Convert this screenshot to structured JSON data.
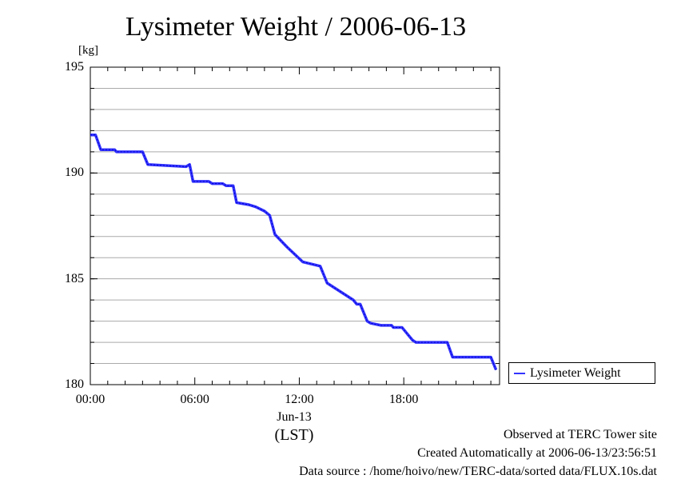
{
  "chart_data": {
    "type": "line",
    "title": "Lysimeter Weight / 2006-06-13",
    "ylabel": "[kg]",
    "ylim": [
      180,
      195
    ],
    "yticks": [
      "180",
      "185",
      "190",
      "195"
    ],
    "xlim": [
      0,
      23.5
    ],
    "xticks": [
      {
        "value": 0,
        "label": "00:00"
      },
      {
        "value": 6,
        "label": "06:00"
      },
      {
        "value": 12,
        "label": "12:00"
      },
      {
        "value": 18,
        "label": "18:00"
      }
    ],
    "xdate": "Jun-13",
    "xunit": "(LST)",
    "grid": true,
    "legend_position": "right-bottom",
    "series": [
      {
        "name": "Lysimeter Weight",
        "color": "#3333ff",
        "x": [
          0.0,
          0.3,
          0.6,
          1.4,
          1.5,
          3.0,
          3.3,
          5.5,
          5.7,
          5.9,
          6.8,
          7.0,
          7.6,
          7.8,
          8.2,
          8.4,
          9.1,
          9.5,
          10.0,
          10.3,
          10.6,
          11.3,
          12.2,
          13.2,
          13.6,
          15.1,
          15.3,
          15.5,
          15.9,
          16.1,
          16.7,
          17.3,
          17.4,
          17.9,
          18.0,
          18.5,
          18.7,
          20.5,
          20.8,
          23.0,
          23.3
        ],
        "y": [
          191.8,
          191.8,
          191.1,
          191.1,
          191.0,
          191.0,
          190.4,
          190.3,
          190.4,
          189.6,
          189.6,
          189.5,
          189.5,
          189.4,
          189.4,
          188.6,
          188.5,
          188.4,
          188.2,
          188.0,
          187.1,
          186.5,
          185.8,
          185.6,
          184.8,
          184.0,
          183.8,
          183.8,
          183.0,
          182.9,
          182.8,
          182.8,
          182.7,
          182.7,
          182.6,
          182.1,
          182.0,
          182.0,
          181.3,
          181.3,
          180.7
        ]
      }
    ]
  },
  "footer": {
    "observed": "Observed at TERC Tower site",
    "created": "Created Automatically at 2006-06-13/23:56:51",
    "source": "Data source : /home/hoivo/new/TERC-data/sorted  data/FLUX.10s.dat"
  }
}
